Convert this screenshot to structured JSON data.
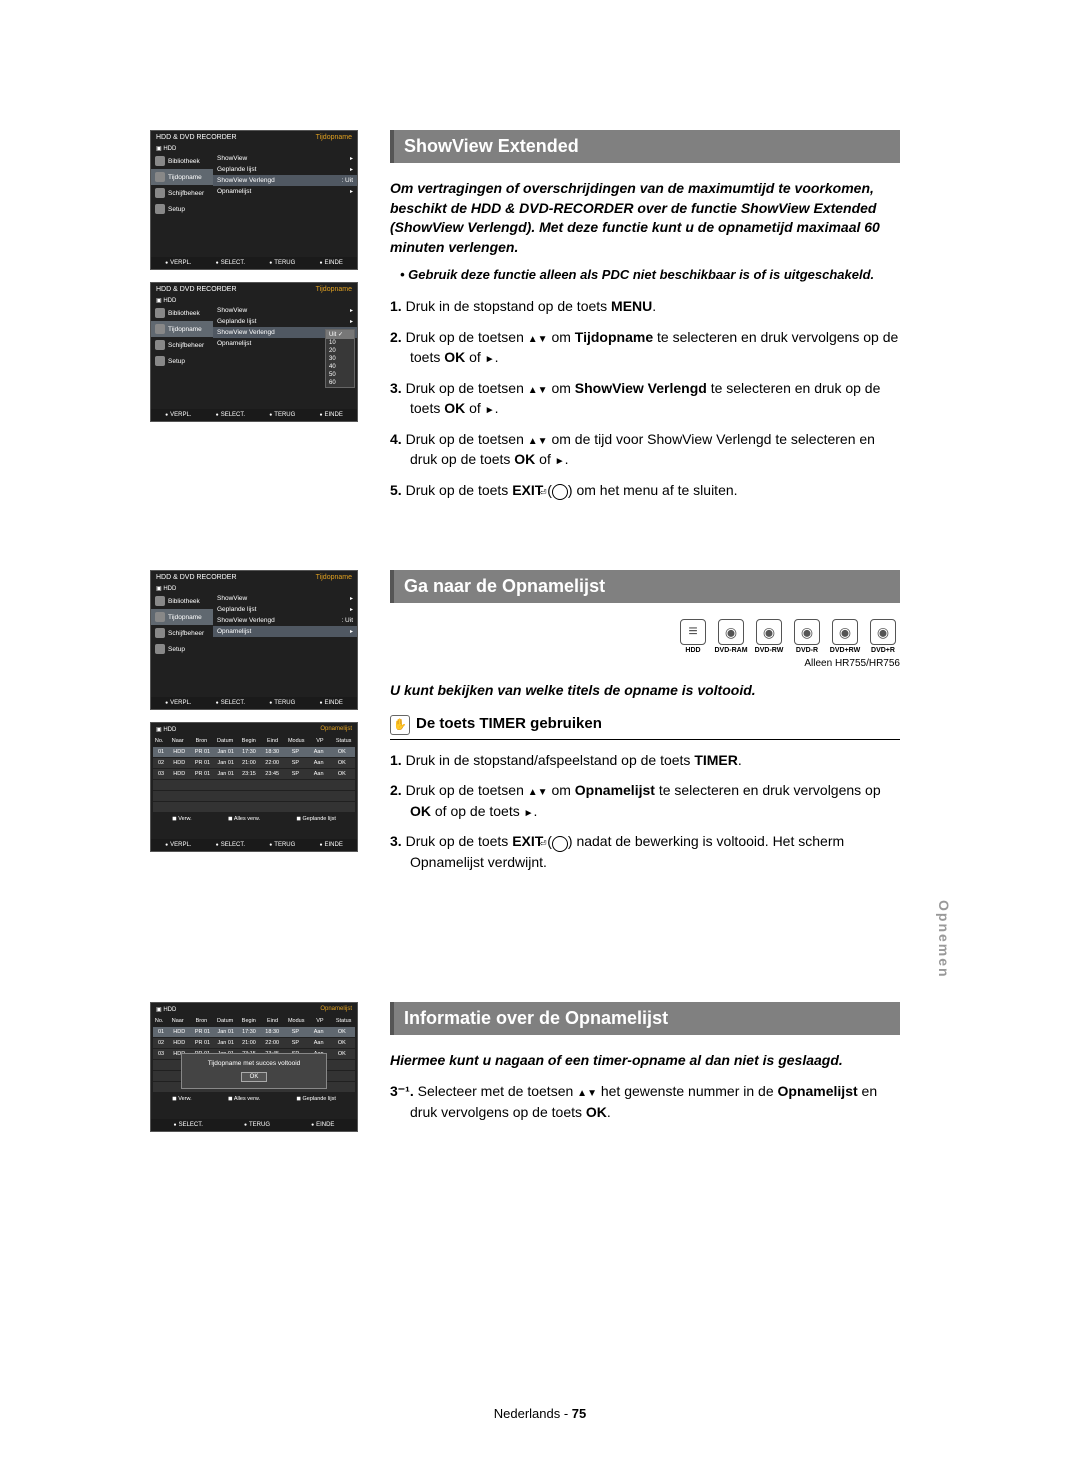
{
  "osd": {
    "header_title": "HDD & DVD RECORDER",
    "header_right": "Tijdopname",
    "hdd_label": "HDD",
    "side_items": [
      "Bibliotheek",
      "Tijdopname",
      "Schijfbeheer",
      "Setup"
    ],
    "menu1": [
      {
        "label": "ShowView",
        "extra": "",
        "arrow": true,
        "hl": false
      },
      {
        "label": "Geplande lijst",
        "extra": "",
        "arrow": true,
        "hl": false
      },
      {
        "label": "ShowView Verlengd",
        "extra": ": Uit",
        "arrow": false,
        "hl": true
      },
      {
        "label": "Opnamelijst",
        "extra": "",
        "arrow": true,
        "hl": false
      }
    ],
    "dropdown": [
      "Uit",
      "10",
      "20",
      "30",
      "40",
      "50",
      "60"
    ],
    "menu3": [
      {
        "label": "ShowView",
        "extra": "",
        "arrow": true,
        "hl": false
      },
      {
        "label": "Geplande lijst",
        "extra": "",
        "arrow": true,
        "hl": false
      },
      {
        "label": "ShowView Verlengd",
        "extra": ": Uit",
        "arrow": false,
        "hl": false
      },
      {
        "label": "Opnamelijst",
        "extra": "",
        "arrow": true,
        "hl": true
      }
    ],
    "footer": [
      "VERPL.",
      "SELECT.",
      "TERUG",
      "EINDE"
    ]
  },
  "osd_table": {
    "hdd": "HDD",
    "right": "Opnamelijst",
    "head": [
      "No.",
      "Naar",
      "Bron",
      "Datum",
      "Begin",
      "Eind",
      "Modus",
      "VP",
      "Status"
    ],
    "rows": [
      [
        "01",
        "HDD",
        "PR 01",
        "Jan 01",
        "17:30",
        "18:30",
        "SP",
        "Aan",
        "OK"
      ],
      [
        "02",
        "HDD",
        "PR 01",
        "Jan 01",
        "21:00",
        "22:00",
        "SP",
        "Aan",
        "OK"
      ],
      [
        "03",
        "HDD",
        "PR 01",
        "Jan 01",
        "23:15",
        "23:45",
        "SP",
        "Aan",
        "OK"
      ]
    ],
    "sub_left": "Verw.",
    "sub_mid": "Alles verw.",
    "sub_right": "Geplande lijst",
    "popup_text": "Tijdopname met succes voltooid",
    "popup_ok": "OK"
  },
  "section1": {
    "title": "ShowView Extended",
    "intro": "Om vertragingen of overschrijdingen van de maximumtijd te voorkomen, beschikt de HDD & DVD-RECORDER over de functie ShowView Extended (ShowView Verlengd). Met deze functie kunt u de opnametijd maximaal 60 minuten verlengen.",
    "bullet": "Gebruik deze functie alleen als PDC niet beschikbaar is of is uitgeschakeld.",
    "steps": {
      "s1": "Druk in de stopstand op de toets ",
      "s1b": "MENU",
      "s1c": ".",
      "s2a": "Druk op de toetsen ",
      "s2b": " om ",
      "s2c": "Tijdopname",
      "s2d": " te selecteren en druk vervolgens op de toets ",
      "s2e": "OK",
      "s2f": " of ",
      "s2g": ".",
      "s3a": "Druk op de toetsen ",
      "s3b": " om ",
      "s3c": "ShowView Verlengd",
      "s3d": " te selecteren en druk op de toets ",
      "s3e": "OK",
      "s3f": " of ",
      "s3g": ".",
      "s4a": "Druk op de toetsen ",
      "s4b": " om de tijd voor ShowView Verlengd te selecteren en druk op de toets ",
      "s4c": "OK",
      "s4d": " of ",
      "s4e": ".",
      "s5a": "Druk op de toets ",
      "s5b": "EXIT",
      "s5c": " (",
      "s5d": ") om het menu af te sluiten."
    }
  },
  "section2": {
    "title": "Ga naar de Opnamelijst",
    "disc_labels": [
      "HDD",
      "DVD-RAM",
      "DVD-RW",
      "DVD-R",
      "DVD+RW",
      "DVD+R"
    ],
    "disc_note": "Alleen HR755/HR756",
    "intro": "U kunt bekijken van welke titels de opname is voltooid.",
    "sub_title": "De toets TIMER gebruiken",
    "steps": {
      "s1a": "Druk in de stopstand/afspeelstand op de toets ",
      "s1b": "TIMER",
      "s1c": ".",
      "s2a": "Druk op de toetsen ",
      "s2b": " om ",
      "s2c": "Opnamelijst",
      "s2d": " te selecteren en druk vervolgens op ",
      "s2e": "OK",
      "s2f": " of op de toets ",
      "s2g": ".",
      "s3a": "Druk op de toets ",
      "s3b": "EXIT",
      "s3c": " (",
      "s3d": ") nadat de bewerking is voltooid. Het scherm Opnamelijst verdwijnt."
    }
  },
  "section3": {
    "title": "Informatie over de Opnamelijst",
    "intro": "Hiermee kunt u nagaan of een timer-opname al dan niet is geslaagd.",
    "step_num": "3⁻¹.",
    "step_a": "Selecteer met de toetsen ",
    "step_b": " het gewenste nummer in de ",
    "step_c": "Opnamelijst",
    "step_d": " en druk vervolgens op de toets ",
    "step_e": "OK",
    "step_f": "."
  },
  "side_tab": "Opnemen",
  "footer_lang": "Nederlands - ",
  "footer_page": "75"
}
